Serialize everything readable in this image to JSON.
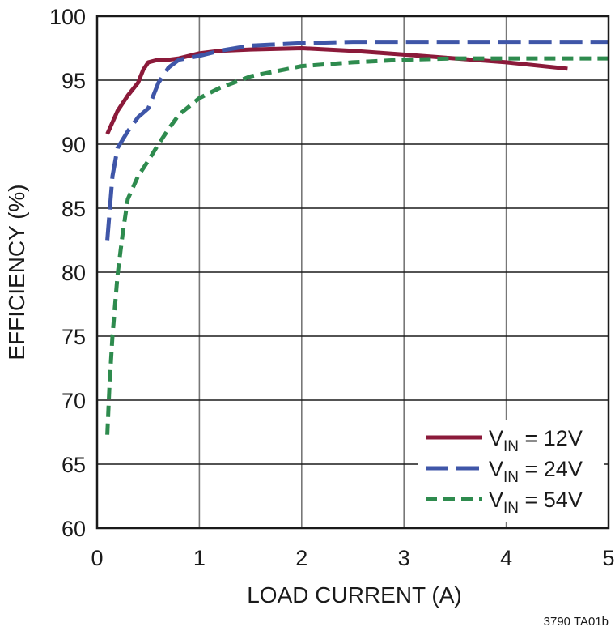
{
  "chart_data": {
    "type": "line",
    "xlabel": "LOAD CURRENT (A)",
    "ylabel": "EFFICIENCY (%)",
    "xlim": [
      0,
      5
    ],
    "ylim": [
      60,
      100
    ],
    "xticks": [
      0,
      1,
      2,
      3,
      4,
      5
    ],
    "yticks": [
      60,
      65,
      70,
      75,
      80,
      85,
      90,
      95,
      100
    ],
    "grid": true,
    "legend_position": "bottom-right",
    "series": [
      {
        "name": "V",
        "name_sub": "IN",
        "name_suffix": " = 12V",
        "color": "#8b1a3a",
        "style": "solid",
        "x": [
          0.1,
          0.2,
          0.3,
          0.4,
          0.45,
          0.5,
          0.6,
          0.7,
          0.8,
          1.0,
          1.2,
          1.5,
          2.0,
          2.5,
          3.0,
          3.5,
          4.0,
          4.6
        ],
        "y": [
          90.8,
          92.6,
          93.8,
          94.8,
          95.8,
          96.4,
          96.6,
          96.6,
          96.7,
          97.1,
          97.3,
          97.4,
          97.5,
          97.3,
          97.0,
          96.7,
          96.4,
          95.9
        ]
      },
      {
        "name": "V",
        "name_sub": "IN",
        "name_suffix": " = 24V",
        "color": "#3f56a8",
        "style": "long-dash",
        "x": [
          0.1,
          0.15,
          0.2,
          0.3,
          0.4,
          0.5,
          0.6,
          0.7,
          0.8,
          1.0,
          1.2,
          1.5,
          2.0,
          2.5,
          3.0,
          3.5,
          4.0,
          4.5,
          5.0
        ],
        "y": [
          82.5,
          87.5,
          89.7,
          91.0,
          92.1,
          92.8,
          94.8,
          96.0,
          96.6,
          96.9,
          97.3,
          97.7,
          97.9,
          98.0,
          98.0,
          98.0,
          98.0,
          98.0,
          98.0
        ]
      },
      {
        "name": "V",
        "name_sub": "IN",
        "name_suffix": " = 54V",
        "color": "#2e8b4e",
        "style": "short-dash",
        "x": [
          0.1,
          0.12,
          0.15,
          0.2,
          0.25,
          0.3,
          0.4,
          0.5,
          0.6,
          0.7,
          0.8,
          1.0,
          1.2,
          1.5,
          2.0,
          2.5,
          3.0,
          3.5,
          4.0,
          4.5,
          5.0
        ],
        "y": [
          67.3,
          71.0,
          75.0,
          79.8,
          83.0,
          85.7,
          87.5,
          88.7,
          90.0,
          91.2,
          92.3,
          93.6,
          94.4,
          95.3,
          96.1,
          96.4,
          96.6,
          96.7,
          96.7,
          96.7,
          96.7
        ]
      }
    ]
  },
  "footnote": "3790 TA01b"
}
